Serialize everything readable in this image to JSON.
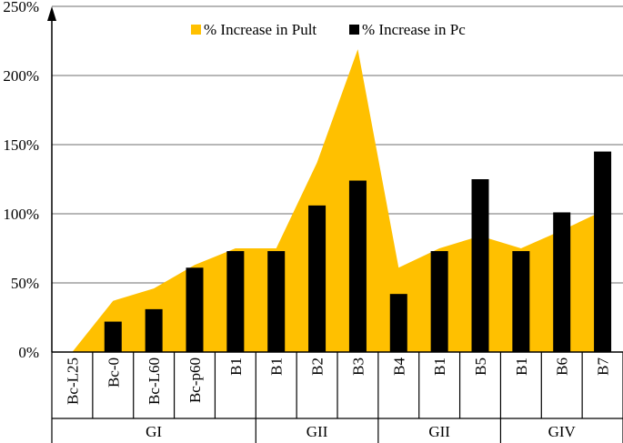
{
  "chart_data": {
    "type": "area+bar",
    "title": "",
    "xlabel": "",
    "ylabel": "",
    "ylim": [
      0,
      250
    ],
    "y_ticks": [
      0,
      50,
      100,
      150,
      200,
      250
    ],
    "y_tick_labels": [
      "0%",
      "50%",
      "100%",
      "150%",
      "200%",
      "250%"
    ],
    "grid": true,
    "legend_position": "top",
    "categories": [
      "Bc-L25",
      "Bc-0",
      "Bc-L60",
      "Bc-p60",
      "B1",
      "B1",
      "B2",
      "B3",
      "B4",
      "B1",
      "B5",
      "B1",
      "B6",
      "B7"
    ],
    "groups": [
      {
        "label": "GI",
        "count": 5
      },
      {
        "label": "GII",
        "count": 3
      },
      {
        "label": "GII",
        "count": 3
      },
      {
        "label": "GIV",
        "count": 3
      }
    ],
    "series": [
      {
        "name": "% Increase in Pult",
        "kind": "area",
        "color": "#FFC000",
        "values": [
          0,
          37,
          46,
          63,
          75,
          75,
          137,
          219,
          61,
          75,
          84,
          75,
          88,
          102
        ]
      },
      {
        "name": "% Increase in Pc",
        "kind": "bar",
        "color": "#000000",
        "values": [
          0,
          22,
          31,
          61,
          73,
          73,
          106,
          124,
          42,
          73,
          125,
          73,
          101,
          145
        ]
      }
    ]
  }
}
